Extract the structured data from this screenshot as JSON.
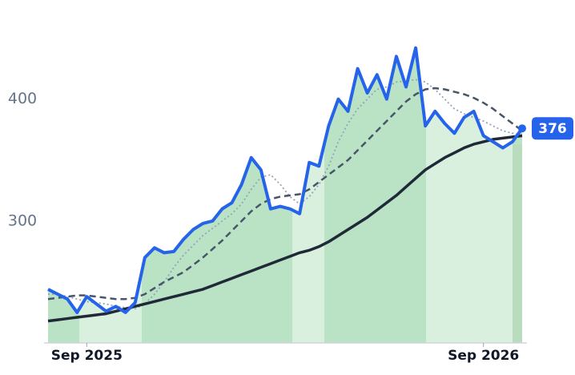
{
  "chart_data": {
    "type": "line",
    "categories": [
      null,
      null,
      null,
      null,
      "Sep 2025",
      null,
      null,
      null,
      null,
      null,
      null,
      null,
      null,
      null,
      null,
      null,
      null,
      null,
      null,
      null,
      null,
      null,
      null,
      null,
      null,
      null,
      null,
      null,
      null,
      null,
      null,
      null,
      null,
      null,
      null,
      null,
      null,
      null,
      null,
      null,
      null,
      null,
      null,
      null,
      null,
      "Sep 2026",
      null,
      null,
      null,
      null
    ],
    "series": [
      {
        "color": "#2563eb",
        "values": [
          244,
          240,
          236,
          225,
          238,
          232,
          226,
          230,
          225,
          233,
          270,
          278,
          274,
          275,
          285,
          293,
          298,
          300,
          310,
          315,
          330,
          352,
          342,
          310,
          312,
          310,
          306,
          348,
          345,
          378,
          400,
          390,
          425,
          405,
          420,
          400,
          435,
          410,
          442,
          378,
          390,
          380,
          372,
          385,
          390,
          370,
          365,
          360,
          365,
          376
        ]
      },
      {
        "color": "#1f2937",
        "values": [
          218,
          219,
          220,
          221,
          222,
          223,
          224,
          226,
          228,
          230,
          232,
          234,
          236,
          238,
          240,
          242,
          244,
          247,
          250,
          253,
          256,
          259,
          262,
          265,
          268,
          271,
          274,
          276,
          279,
          283,
          288,
          293,
          298,
          303,
          309,
          315,
          321,
          328,
          335,
          342,
          347,
          352,
          356,
          360,
          363,
          365,
          367,
          368,
          369,
          370
        ]
      },
      {
        "color": "#475569",
        "values": [
          236,
          237,
          238,
          239,
          239,
          238,
          237,
          236,
          236,
          237,
          240,
          245,
          250,
          254,
          258,
          264,
          270,
          277,
          284,
          292,
          300,
          308,
          314,
          318,
          320,
          321,
          322,
          326,
          332,
          338,
          344,
          350,
          358,
          366,
          374,
          382,
          390,
          398,
          404,
          408,
          409,
          408,
          406,
          404,
          401,
          397,
          392,
          386,
          380,
          374
        ]
      },
      {
        "color": "#94a3b8",
        "values": [
          240,
          240,
          238,
          236,
          234,
          233,
          232,
          230,
          229,
          228,
          232,
          240,
          250,
          262,
          272,
          280,
          288,
          294,
          300,
          306,
          314,
          326,
          336,
          338,
          330,
          320,
          314,
          320,
          330,
          345,
          365,
          380,
          392,
          400,
          408,
          410,
          414,
          415,
          416,
          414,
          408,
          400,
          392,
          388,
          385,
          382,
          378,
          374,
          372,
          370
        ]
      }
    ],
    "ylim": [
      200,
      455
    ],
    "yticks": [
      300,
      400
    ],
    "grid": false
  }
}
